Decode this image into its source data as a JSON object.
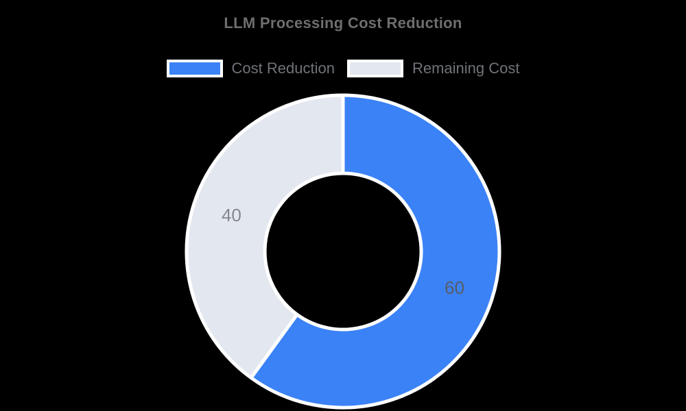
{
  "chart_data": {
    "type": "pie",
    "subtype": "donut",
    "title": "LLM Processing Cost Reduction",
    "categories": [
      "Cost Reduction",
      "Remaining Cost"
    ],
    "values": [
      60,
      40
    ],
    "data_labels": [
      "60",
      "40"
    ],
    "colors": [
      "#3B82F6",
      "#E3E7EF"
    ],
    "label_colors": [
      "#575D68",
      "#85888D"
    ],
    "slice_border_color": "#FFFFFF",
    "start_angle_deg": 0,
    "direction": "clockwise",
    "legend_position": "top",
    "background_color": "#000000",
    "title_color": "#6E6E6E",
    "legend_text_color": "#707378"
  }
}
